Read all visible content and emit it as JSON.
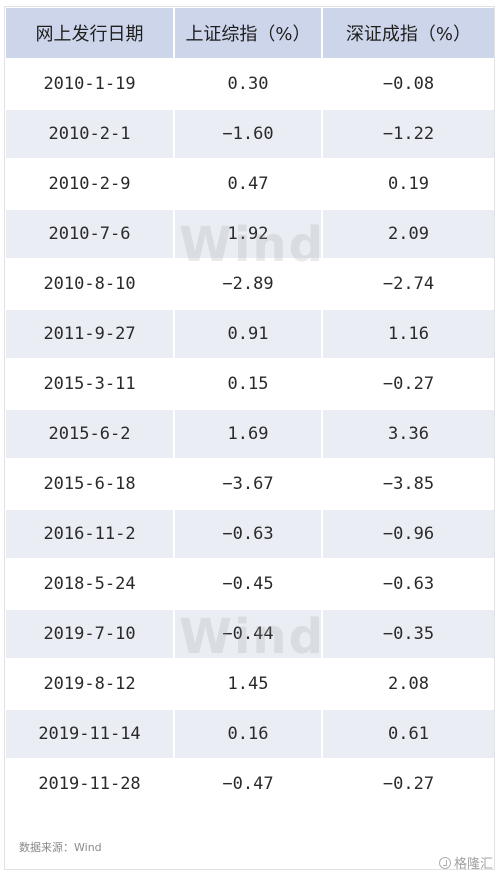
{
  "headers": [
    "网上发行日期",
    "上证综指（%）",
    "深证成指（%）"
  ],
  "rows": [
    [
      "2010-1-19",
      "0.30",
      "−0.08"
    ],
    [
      "2010-2-1",
      "−1.60",
      "−1.22"
    ],
    [
      "2010-2-9",
      "0.47",
      "0.19"
    ],
    [
      "2010-7-6",
      "1.92",
      "2.09"
    ],
    [
      "2010-8-10",
      "−2.89",
      "−2.74"
    ],
    [
      "2011-9-27",
      "0.91",
      "1.16"
    ],
    [
      "2015-3-11",
      "0.15",
      "−0.27"
    ],
    [
      "2015-6-2",
      "1.69",
      "3.36"
    ],
    [
      "2015-6-18",
      "−3.67",
      "−3.85"
    ],
    [
      "2016-11-2",
      "−0.63",
      "−0.96"
    ],
    [
      "2018-5-24",
      "−0.45",
      "−0.63"
    ],
    [
      "2019-7-10",
      "−0.44",
      "−0.35"
    ],
    [
      "2019-8-12",
      "1.45",
      "2.08"
    ],
    [
      "2019-11-14",
      "0.16",
      "0.61"
    ],
    [
      "2019-11-28",
      "−0.47",
      "−0.27"
    ]
  ],
  "watermark": "Wind",
  "source": "数据来源：Wind",
  "brand": "格隆汇",
  "brand_icon": "gelonghui-logo-icon"
}
